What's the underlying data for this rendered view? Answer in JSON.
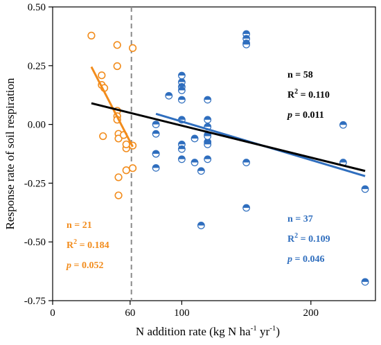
{
  "chart_data": {
    "type": "scatter",
    "xlabel": "N addition rate (kg N ha⁻¹ yr⁻¹)",
    "xlabel_parts": [
      "N addition rate (kg N ha",
      "-1",
      " yr",
      "-1",
      ")"
    ],
    "ylabel": "Response rate of soil respiration",
    "xlim": [
      0,
      250
    ],
    "ylim": [
      -0.75,
      0.5
    ],
    "xticks": [
      0,
      60,
      100,
      200
    ],
    "xtick_labels": [
      "0",
      "60",
      "100",
      "200"
    ],
    "yticks": [
      0.5,
      0.25,
      0.0,
      -0.25,
      -0.5,
      -0.75
    ],
    "ytick_labels": [
      "0.50",
      "0.25",
      "0.00",
      "-0.25",
      "-0.50",
      "-0.75"
    ],
    "threshold_x": 61,
    "colors": {
      "low": "#f28c1c",
      "high": "#2f6ebe",
      "all": "#000000",
      "threshold": "#8a8a8a"
    },
    "series": [
      {
        "key": "low",
        "marker": "open-circle",
        "x": [
          30,
          38,
          38,
          40,
          50,
          50,
          50,
          50,
          50,
          51,
          51,
          51,
          51,
          55,
          57,
          57,
          57,
          62,
          62,
          62,
          39
        ],
        "y": [
          0.378,
          0.168,
          0.209,
          0.155,
          0.338,
          0.248,
          0.058,
          0.035,
          0.02,
          -0.04,
          -0.06,
          -0.225,
          -0.302,
          -0.045,
          -0.102,
          -0.085,
          -0.195,
          0.325,
          -0.09,
          -0.186,
          -0.05
        ]
      },
      {
        "key": "high",
        "marker": "half-filled-circle",
        "x": [
          80,
          80,
          80,
          80,
          80,
          90,
          100,
          100,
          100,
          100,
          100,
          100,
          100,
          100,
          100,
          110,
          110,
          115,
          115,
          120,
          120,
          120,
          120,
          120,
          120,
          120,
          150,
          150,
          150,
          150,
          150,
          150,
          225,
          225,
          242,
          242,
          120
        ],
        "y": [
          0.0,
          -0.04,
          -0.125,
          -0.185,
          -0.125,
          0.122,
          0.208,
          0.18,
          0.16,
          0.145,
          0.105,
          0.02,
          -0.085,
          -0.105,
          -0.148,
          -0.06,
          -0.162,
          -0.198,
          -0.43,
          0.105,
          0.02,
          -0.01,
          -0.045,
          -0.075,
          -0.085,
          -0.148,
          0.385,
          0.365,
          0.345,
          -0.162,
          -0.355,
          0.34,
          -0.002,
          -0.162,
          -0.275,
          -0.67,
          -0.05
        ]
      }
    ],
    "fits": [
      {
        "key": "low",
        "x": [
          30,
          62
        ],
        "y": [
          0.245,
          -0.095
        ]
      },
      {
        "key": "high",
        "x": [
          80,
          242
        ],
        "y": [
          0.045,
          -0.22
        ]
      },
      {
        "key": "all",
        "x": [
          30,
          242
        ],
        "y": [
          0.09,
          -0.198
        ]
      }
    ],
    "annotations": [
      {
        "key": "all",
        "n": "n = 58",
        "r2": "R",
        "r2_val": " = 0.110",
        "p": "p",
        "p_val": " = 0.011"
      },
      {
        "key": "high",
        "n": "n = 37",
        "r2": "R",
        "r2_val": " = 0.109",
        "p": "p",
        "p_val": " = 0.046"
      },
      {
        "key": "low",
        "n": "n = 21",
        "r2": "R",
        "r2_val": " = 0.184",
        "p": "p",
        "p_val": " = 0.052"
      }
    ]
  }
}
